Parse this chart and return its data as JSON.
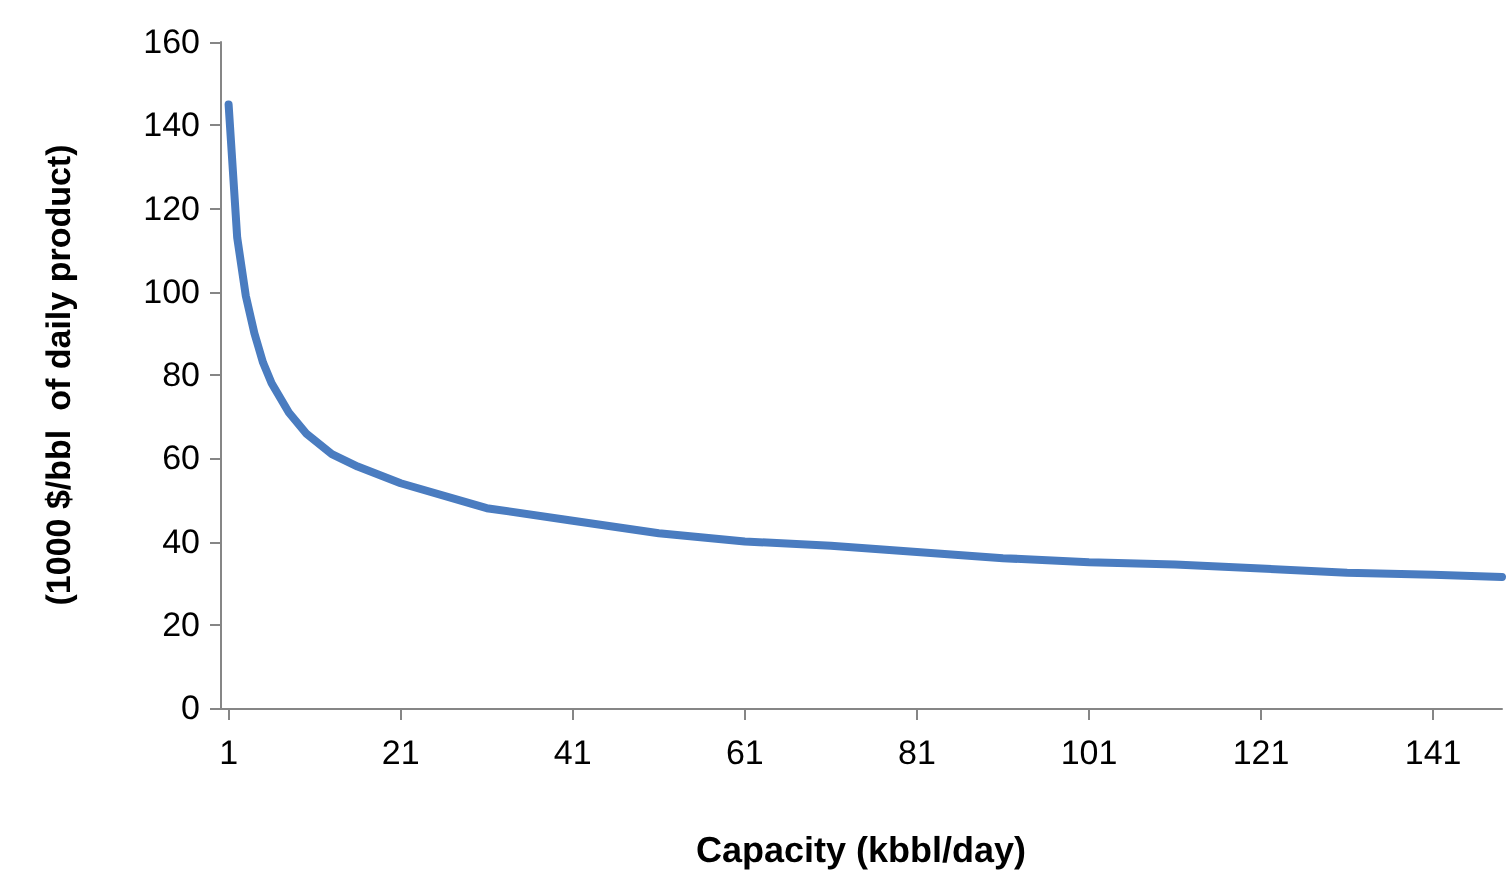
{
  "chart_data": {
    "type": "line",
    "xlabel": "Capacity (kbbl/day)",
    "ylabel": "(1000 $/bbl  of daily product)",
    "x": [
      1,
      2,
      3,
      4,
      5,
      6,
      8,
      10,
      13,
      16,
      21,
      31,
      41,
      51,
      61,
      71,
      81,
      91,
      101,
      111,
      121,
      131,
      141,
      149
    ],
    "series": [
      {
        "color": "#4a7cc0",
        "values": [
          145,
          113,
          99,
          90,
          83,
          78,
          71,
          66,
          61,
          58,
          54,
          48,
          45,
          42,
          40,
          39,
          37.5,
          36,
          35,
          34.5,
          33.5,
          32.5,
          32,
          31.5
        ]
      }
    ],
    "xlim": [
      0,
      149
    ],
    "xticks": [
      1,
      21,
      41,
      61,
      81,
      101,
      121,
      141
    ],
    "ylim": [
      0,
      160
    ],
    "yticks": [
      0,
      20,
      40,
      60,
      80,
      100,
      120,
      140,
      160
    ],
    "grid": false,
    "marker": "none",
    "line_style": "solid"
  }
}
